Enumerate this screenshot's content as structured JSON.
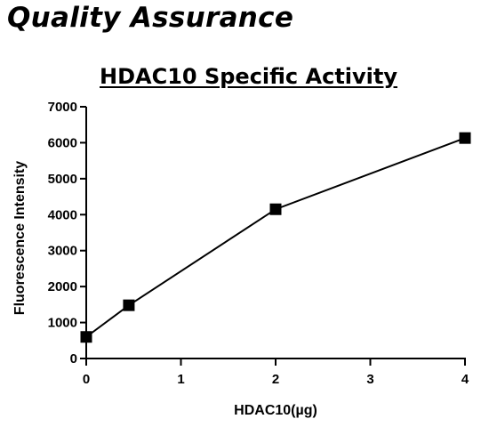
{
  "heading": "Quality Assurance",
  "chart_data": {
    "type": "line",
    "title": "HDAC10 Specific Activity",
    "xlabel": "HDAC10(µg)",
    "ylabel": "Fluorescence Intensity",
    "xlim": [
      0,
      4
    ],
    "ylim": [
      0,
      7000
    ],
    "xticks": [
      0,
      1,
      2,
      3,
      4
    ],
    "yticks": [
      0,
      1000,
      2000,
      3000,
      4000,
      5000,
      6000,
      7000
    ],
    "grid": false,
    "marker": "square",
    "series": [
      {
        "x": [
          0,
          0.45,
          2,
          4
        ],
        "y": [
          600,
          1480,
          4150,
          6130
        ]
      }
    ],
    "colors": {
      "line": "#000000",
      "marker": "#000000",
      "axis": "#000000"
    }
  }
}
